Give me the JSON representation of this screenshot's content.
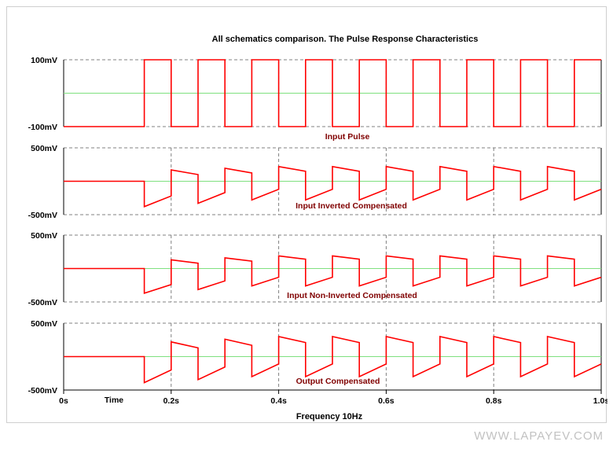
{
  "title": "All schematics comparison. The Pulse Response Characteristics",
  "watermark": "WWW.LAPAYEV.COM",
  "colors": {
    "trace": "#ff0000",
    "zero_line": "#7fe07f",
    "grid": "#808080",
    "label": "#800000",
    "text": "#000000"
  },
  "x_axis": {
    "unit_label": "Time",
    "bottom_label": "Frequency 10Hz",
    "range": [
      0,
      1.0
    ],
    "tick_labels": [
      "0s",
      "0.2s",
      "0.4s",
      "0.6s",
      "0.8s",
      "1.0s"
    ]
  },
  "chart_data": [
    {
      "type": "line",
      "name": "Input Pulse",
      "ymin_label": "-100mV",
      "ymax_label": "100mV",
      "ylim": [
        -100,
        100
      ],
      "unit": "mV",
      "start": 0.15,
      "period": 0.1,
      "wave": "square",
      "low": -100,
      "high": 100,
      "initial": -100
    },
    {
      "type": "line",
      "name": "Input Inverted  Compensated",
      "ymin_label": "-500mV",
      "ymax_label": "500mV",
      "ylim": [
        -500,
        500
      ],
      "unit": "mV",
      "start": 0.15,
      "period": 0.1,
      "wave": "compensated",
      "initial": 0,
      "low_start": -380,
      "low_end": -220,
      "high_start": 170,
      "high_end": 100,
      "high_start_last": 280,
      "low_drift": 50,
      "high_drift": 25
    },
    {
      "type": "line",
      "name": "Input Non-Inverted  Compensated",
      "ymin_label": "-500mV",
      "ymax_label": "500mV",
      "ylim": [
        -500,
        500
      ],
      "unit": "mV",
      "start": 0.15,
      "period": 0.1,
      "wave": "compensated",
      "initial": 0,
      "low_start": -370,
      "low_end": -240,
      "high_start": 130,
      "high_end": 80,
      "low_drift": 55,
      "high_drift": 30
    },
    {
      "type": "line",
      "name": "Output Compensated",
      "ymin_label": "-500mV",
      "ymax_label": "500mV",
      "ylim": [
        -500,
        500
      ],
      "unit": "mV",
      "start": 0.15,
      "period": 0.1,
      "wave": "compensated",
      "initial": 0,
      "low_start": -390,
      "low_end": -200,
      "high_start": 220,
      "high_end": 130,
      "low_drift": 45,
      "high_drift": 40
    }
  ]
}
